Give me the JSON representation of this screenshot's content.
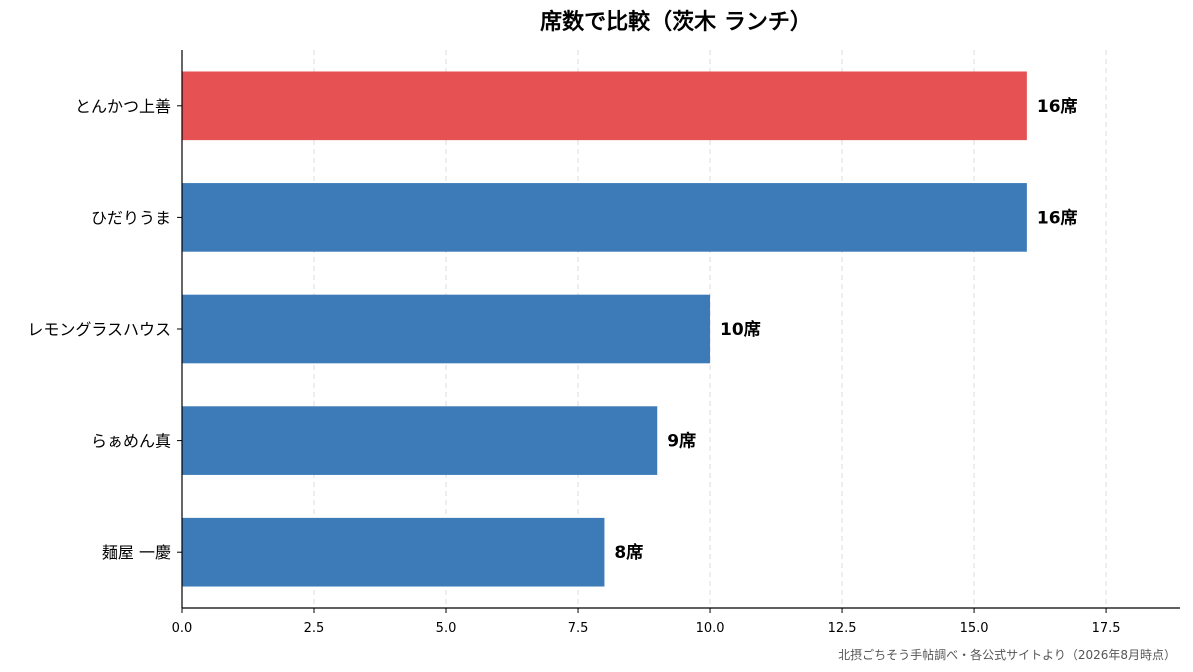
{
  "chart_data": {
    "type": "bar",
    "orientation": "horizontal",
    "title": "席数で比較（茨木 ランチ）",
    "categories": [
      "とんかつ上善",
      "ひだりうま",
      "レモングラスハウス",
      "らぁめん真",
      "麺屋 一慶"
    ],
    "values": [
      16,
      16,
      10,
      9,
      8
    ],
    "value_labels": [
      "16席",
      "16席",
      "10席",
      "9席",
      "8席"
    ],
    "bar_colors": [
      "#e65254",
      "#3d7ab8",
      "#3d7ab8",
      "#3d7ab8",
      "#3d7ab8"
    ],
    "highlight_category": "とんかつ上善",
    "xlim": [
      0,
      18.9
    ],
    "x_ticks": [
      0,
      2.5,
      5,
      7.5,
      10,
      12.5,
      15,
      17.5
    ],
    "x_tick_labels": [
      "0.0",
      "2.5",
      "5.0",
      "7.5",
      "10.0",
      "12.5",
      "15.0",
      "17.5"
    ],
    "xlabel": "",
    "ylabel": "",
    "grid": "vertical dashed",
    "source_note": "北摂ごちそう手帖調べ・各公式サイトより（2026年8月時点）"
  }
}
